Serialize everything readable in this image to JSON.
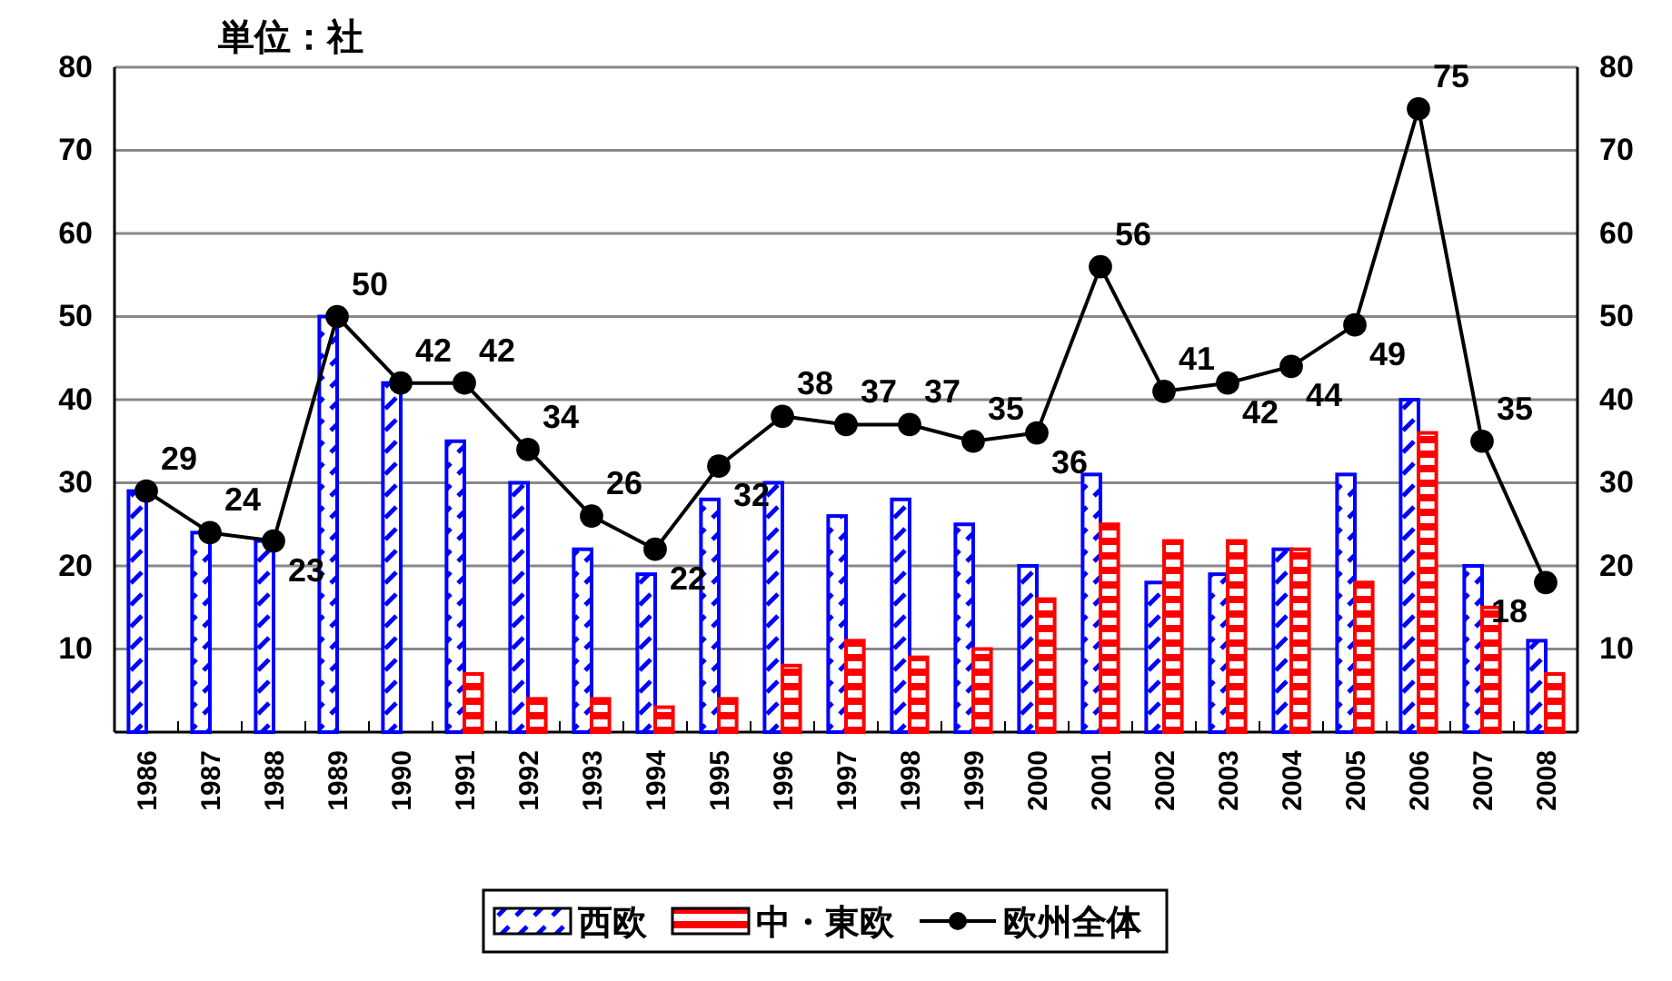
{
  "chart_data": {
    "type": "bar",
    "title": "単位：社",
    "categories": [
      "1986",
      "1987",
      "1988",
      "1989",
      "1990",
      "1991",
      "1992",
      "1993",
      "1994",
      "1995",
      "1996",
      "1997",
      "1998",
      "1999",
      "2000",
      "2001",
      "2002",
      "2003",
      "2004",
      "2005",
      "2006",
      "2007",
      "2008"
    ],
    "series": [
      {
        "name": "西欧",
        "color": "#0000ff",
        "values": [
          29,
          24,
          23,
          50,
          42,
          35,
          30,
          22,
          19,
          28,
          30,
          26,
          28,
          25,
          20,
          31,
          18,
          19,
          22,
          31,
          40,
          20,
          11
        ]
      },
      {
        "name": "中・東欧",
        "color": "#ff0000",
        "values": [
          null,
          null,
          null,
          null,
          null,
          7,
          4,
          4,
          3,
          4,
          8,
          11,
          9,
          10,
          16,
          25,
          23,
          23,
          22,
          18,
          36,
          15,
          7
        ]
      },
      {
        "name": "欧州全体",
        "type": "line",
        "color": "#000000",
        "marker": "circle",
        "values": [
          29,
          24,
          23,
          50,
          42,
          42,
          34,
          26,
          22,
          32,
          38,
          37,
          37,
          35,
          36,
          56,
          41,
          42,
          44,
          49,
          75,
          35,
          18
        ],
        "value_labels": [
          "29",
          "24",
          "23",
          "50",
          "42",
          "42",
          "34",
          "26",
          "22",
          "32",
          "38",
          "37",
          "37",
          "35",
          "36",
          "56",
          "41",
          "42",
          "44",
          "49",
          "75",
          "35",
          "18"
        ]
      }
    ],
    "ylim": [
      0,
      80
    ],
    "yticks": [
      10,
      20,
      30,
      40,
      50,
      60,
      70,
      80
    ],
    "y2lim": [
      0,
      80
    ],
    "y2ticks": [
      10,
      20,
      30,
      40,
      50,
      60,
      70,
      80
    ],
    "grid": "y",
    "legend": "bottom"
  }
}
